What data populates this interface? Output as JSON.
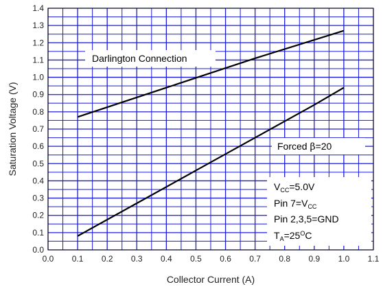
{
  "chart_data": {
    "type": "line",
    "xlabel": "Collector Current (A)",
    "ylabel": "Saturation Voltage (V)",
    "xlim": [
      0.0,
      1.1
    ],
    "ylim": [
      0.0,
      1.4
    ],
    "x_ticks": [
      "0.0",
      "0.1",
      "0.2",
      "0.3",
      "0.4",
      "0.5",
      "0.6",
      "0.7",
      "0.8",
      "0.9",
      "1.0",
      "1.1"
    ],
    "y_ticks": [
      "0.0",
      "0.1",
      "0.2",
      "0.3",
      "0.4",
      "0.5",
      "0.6",
      "0.7",
      "0.8",
      "0.9",
      "1.0",
      "1.1",
      "1.2",
      "1.3",
      "1.4"
    ],
    "grid": true,
    "grid_color": "#1a1adb",
    "line_color": "#000000",
    "series": [
      {
        "name": "Darlington Connection",
        "x": [
          0.1,
          0.4,
          0.7,
          1.0
        ],
        "y": [
          0.77,
          0.94,
          1.11,
          1.27
        ]
      },
      {
        "name": "Forced β=20",
        "x": [
          0.1,
          0.3,
          0.5,
          0.7,
          0.9,
          1.0
        ],
        "y": [
          0.08,
          0.27,
          0.46,
          0.65,
          0.84,
          0.94
        ]
      }
    ],
    "annotations": {
      "darlington": "Darlington Connection",
      "forced_prefix": "Forced ",
      "forced_beta": "β",
      "forced_suffix": "=20",
      "cond1_main": "V",
      "cond1_sub": "CC",
      "cond1_rest": "=5.0V",
      "cond2_main": "Pin 7=V",
      "cond2_sub": "CC",
      "cond3": "Pin 2,3,5=GND",
      "cond4_main": "T",
      "cond4_sub": "A",
      "cond4_mid": "=25",
      "cond4_sup": "O",
      "cond4_rest": "C"
    }
  }
}
